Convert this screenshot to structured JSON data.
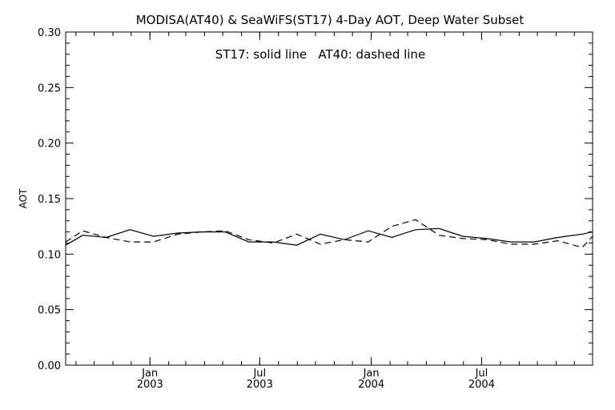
{
  "chart_data": {
    "type": "line",
    "title": "MODISA(AT40) & SeaWiFS(ST17) 4-Day AOT, Deep Water Subset",
    "annotation": "ST17: solid line   AT40: dashed line",
    "ylabel": "AOT",
    "xlabel": "",
    "ylim": [
      0.0,
      0.3
    ],
    "y_ticks": [
      "0.00",
      "0.05",
      "0.10",
      "0.15",
      "0.20",
      "0.25",
      "0.30"
    ],
    "xlim": [
      "2002-08-15",
      "2004-12-31"
    ],
    "x_ticks": [
      {
        "date": "2003-01-01",
        "month": "Jan",
        "year": "2003"
      },
      {
        "date": "2003-07-01",
        "month": "Jul",
        "year": "2003"
      },
      {
        "date": "2004-01-01",
        "month": "Jan",
        "year": "2004"
      },
      {
        "date": "2004-07-01",
        "month": "Jul",
        "year": "2004"
      }
    ],
    "grid": false,
    "series": [
      {
        "name": "ST17",
        "style": "solid",
        "x": [
          "2002-08-15",
          "2002-09-12",
          "2002-10-21",
          "2002-11-29",
          "2003-01-07",
          "2003-02-16",
          "2003-03-27",
          "2003-05-05",
          "2003-06-13",
          "2003-07-23",
          "2003-08-31",
          "2003-10-09",
          "2003-11-18",
          "2003-12-27",
          "2004-02-04",
          "2004-03-14",
          "2004-04-22",
          "2004-05-31",
          "2004-07-10",
          "2004-08-18",
          "2004-09-26",
          "2004-11-04",
          "2004-12-14",
          "2004-12-31"
        ],
        "values": [
          0.108,
          0.117,
          0.115,
          0.122,
          0.116,
          0.119,
          0.12,
          0.12,
          0.111,
          0.111,
          0.108,
          0.118,
          0.113,
          0.121,
          0.115,
          0.122,
          0.123,
          0.116,
          0.114,
          0.111,
          0.111,
          0.115,
          0.118,
          0.12
        ]
      },
      {
        "name": "AT40",
        "style": "dashed",
        "x": [
          "2002-08-15",
          "2002-09-12",
          "2002-10-21",
          "2002-11-29",
          "2003-01-07",
          "2003-02-16",
          "2003-03-27",
          "2003-05-05",
          "2003-06-13",
          "2003-07-23",
          "2003-08-31",
          "2003-10-09",
          "2003-11-18",
          "2003-12-27",
          "2004-02-04",
          "2004-03-14",
          "2004-04-22",
          "2004-05-31",
          "2004-07-10",
          "2004-08-18",
          "2004-09-26",
          "2004-11-04",
          "2004-12-14",
          "2004-12-31"
        ],
        "values": [
          0.111,
          0.121,
          0.115,
          0.111,
          0.111,
          0.118,
          0.12,
          0.121,
          0.113,
          0.11,
          0.118,
          0.109,
          0.113,
          0.111,
          0.125,
          0.131,
          0.117,
          0.114,
          0.113,
          0.109,
          0.109,
          0.112,
          0.106,
          0.116
        ]
      }
    ]
  }
}
